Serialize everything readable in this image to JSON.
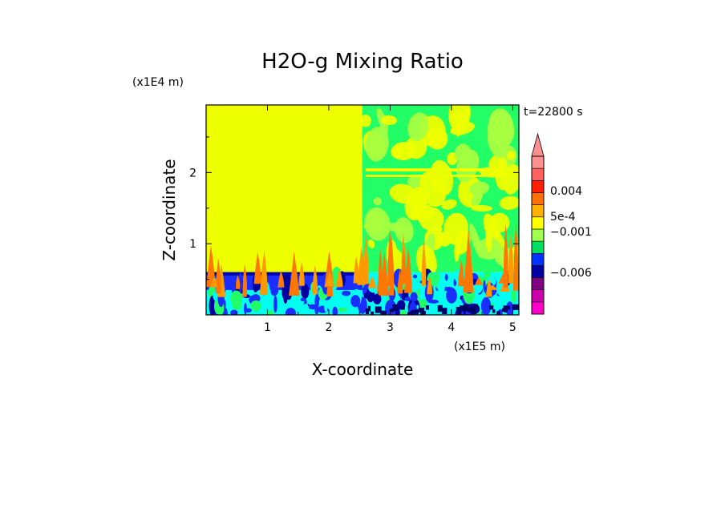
{
  "chart_data": {
    "type": "heatmap",
    "title": "H2O-g Mixing Ratio",
    "xlabel": "X-coordinate",
    "ylabel": "Z-coordinate",
    "x_scale_note": "(x1E5 m)",
    "y_scale_note": "(x1E4 m)",
    "time_label": "t=22800 s",
    "xlim": [
      0.0,
      5.1
    ],
    "ylim": [
      0.0,
      2.95
    ],
    "x_ticks": [
      {
        "value": 1,
        "label": "1"
      },
      {
        "value": 2,
        "label": "2"
      },
      {
        "value": 3,
        "label": "3"
      },
      {
        "value": 4,
        "label": "4"
      },
      {
        "value": 5,
        "label": "5"
      }
    ],
    "y_ticks": [
      {
        "value": 1,
        "label": "1"
      },
      {
        "value": 2,
        "label": "2"
      }
    ],
    "regions": [
      {
        "name": "upper-left",
        "color": "yellow",
        "x": [
          0.0,
          2.55
        ],
        "z": [
          0.6,
          2.95
        ]
      },
      {
        "name": "upper-right",
        "color": "mixed green/yellow",
        "x": [
          2.55,
          5.1
        ],
        "z": [
          0.6,
          2.95
        ]
      },
      {
        "name": "lower-left",
        "color": "blue/cyan",
        "x": [
          0.0,
          2.55
        ],
        "z": [
          0.0,
          0.6
        ]
      },
      {
        "name": "lower-right",
        "color": "blue/cyan/green",
        "x": [
          2.55,
          5.1
        ],
        "z": [
          0.0,
          0.6
        ]
      }
    ],
    "colorbar": {
      "colors": [
        "#ff00cc",
        "#cc00aa",
        "#800080",
        "#0000a0",
        "#0033ff",
        "#00e060",
        "#9fff50",
        "#ffff00",
        "#ffb000",
        "#ff7000",
        "#ff2000",
        "#ff6060",
        "#ff9090"
      ],
      "labels": [
        {
          "text": "0.004",
          "value": 0.004
        },
        {
          "text": "5e-4",
          "value": 0.0005
        },
        {
          "text": "−0.001",
          "value": -0.001
        },
        {
          "text": "−0.006",
          "value": -0.006
        }
      ]
    },
    "palette": {
      "yellow": "#eeff00",
      "green": "#22ff66",
      "lightgreen": "#a6ff40",
      "cyan": "#00ffee",
      "blue": "#1a2fff",
      "darkblue": "#0000a0",
      "orange": "#ff9900",
      "darkorange": "#ff7700",
      "navy": "#000066"
    }
  }
}
